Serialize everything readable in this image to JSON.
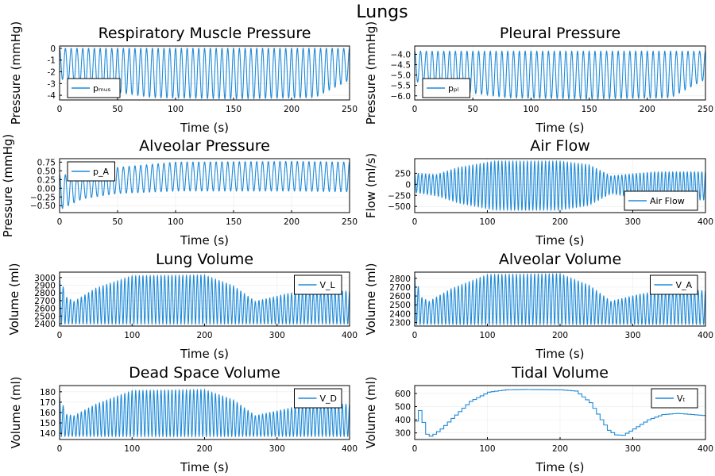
{
  "figure_title": "Lungs",
  "colors": {
    "series": "#1f8ad8",
    "axis": "#000000",
    "legend_bg": "#ffffff"
  },
  "chart_data": [
    {
      "type": "line",
      "title": "Respiratory Muscle Pressure",
      "xlabel": "Time (s)",
      "ylabel": "Pressure (mmHg)",
      "xlim": [
        0,
        250
      ],
      "ylim": [
        -4.4,
        0.2
      ],
      "xticks": [
        0,
        50,
        100,
        150,
        200,
        250
      ],
      "yticks": [
        0,
        -1,
        -2,
        -3,
        -4
      ],
      "legend": {
        "label": "pₘᵤₛ",
        "position": "bottom-left"
      },
      "series": [
        {
          "name": "pₘᵤₛ",
          "waveform": "pulse",
          "period": 5,
          "x_start": 0,
          "x_end": 250,
          "upper_envelope": [
            [
              0,
              0
            ],
            [
              250,
              0
            ]
          ],
          "lower_envelope": [
            [
              0,
              -2.6
            ],
            [
              15,
              -2.9
            ],
            [
              40,
              -3.6
            ],
            [
              80,
              -4.2
            ],
            [
              150,
              -4.3
            ],
            [
              220,
              -4.2
            ],
            [
              250,
              -2.7
            ]
          ]
        }
      ]
    },
    {
      "type": "line",
      "title": "Pleural Pressure",
      "xlabel": "Time (s)",
      "ylabel": "Pressure (mmHg)",
      "xlim": [
        0,
        250
      ],
      "ylim": [
        -6.2,
        -3.6
      ],
      "xticks": [
        0,
        50,
        100,
        150,
        200,
        250
      ],
      "yticks": [
        -4.0,
        -4.5,
        -5.0,
        -5.5,
        -6.0
      ],
      "ytick_labels": [
        "−4.0",
        "−4.5",
        "−5.0",
        "−5.5",
        "−6.0"
      ],
      "legend": {
        "label": "pₚₗ",
        "position": "bottom-left"
      },
      "series": [
        {
          "name": "pₚₗ",
          "waveform": "pulse",
          "period": 5,
          "x_start": 0,
          "x_end": 250,
          "upper_envelope": [
            [
              0,
              -3.85
            ],
            [
              250,
              -3.85
            ]
          ],
          "lower_envelope": [
            [
              0,
              -5.3
            ],
            [
              15,
              -5.5
            ],
            [
              40,
              -5.8
            ],
            [
              80,
              -6.1
            ],
            [
              150,
              -6.15
            ],
            [
              220,
              -6.1
            ],
            [
              250,
              -5.2
            ]
          ]
        }
      ]
    },
    {
      "type": "line",
      "title": "Alveolar Pressure",
      "xlabel": "Time (s)",
      "ylabel": "Pressure (mmHg)",
      "xlim": [
        0,
        250
      ],
      "ylim": [
        -0.7,
        0.85
      ],
      "xticks": [
        0,
        50,
        100,
        150,
        200,
        250
      ],
      "yticks": [
        0.75,
        0.5,
        0.25,
        0,
        -0.25,
        -0.5
      ],
      "ytick_labels": [
        "0.75",
        "0.50",
        "0.25",
        "0.00",
        "−0.25",
        "−0.50"
      ],
      "legend": {
        "label": "p_A",
        "position": "top-left"
      },
      "series": [
        {
          "name": "p_A",
          "waveform": "sine",
          "period": 5,
          "x_start": 0,
          "x_end": 250,
          "upper_envelope": [
            [
              0,
              0.4
            ],
            [
              20,
              0.35
            ],
            [
              50,
              0.6
            ],
            [
              100,
              0.75
            ],
            [
              200,
              0.77
            ],
            [
              250,
              0.75
            ]
          ],
          "lower_envelope": [
            [
              0,
              -0.62
            ],
            [
              20,
              -0.3
            ],
            [
              50,
              -0.15
            ],
            [
              100,
              -0.08
            ],
            [
              200,
              -0.08
            ],
            [
              250,
              -0.1
            ]
          ]
        }
      ]
    },
    {
      "type": "line",
      "title": "Air Flow",
      "xlabel": "Time (s)",
      "ylabel": "Flow (ml/s)",
      "xlim": [
        0,
        400
      ],
      "ylim": [
        -640,
        580
      ],
      "xticks": [
        0,
        100,
        200,
        300,
        400
      ],
      "yticks": [
        250,
        0,
        -250,
        -500
      ],
      "ytick_labels": [
        "250",
        "0",
        "−250",
        "−500"
      ],
      "legend": {
        "label": "Air Flow",
        "position": "bottom-right"
      },
      "series": [
        {
          "name": "Air Flow",
          "waveform": "sine",
          "period": 5,
          "x_start": 0,
          "x_end": 400,
          "upper_envelope": [
            [
              0,
              250
            ],
            [
              30,
              220
            ],
            [
              60,
              380
            ],
            [
              110,
              520
            ],
            [
              200,
              520
            ],
            [
              240,
              440
            ],
            [
              270,
              190
            ],
            [
              330,
              280
            ],
            [
              400,
              280
            ]
          ],
          "lower_envelope": [
            [
              0,
              -180
            ],
            [
              30,
              -260
            ],
            [
              60,
              -420
            ],
            [
              110,
              -580
            ],
            [
              200,
              -580
            ],
            [
              240,
              -470
            ],
            [
              270,
              -210
            ],
            [
              330,
              -370
            ],
            [
              400,
              -350
            ]
          ]
        }
      ]
    },
    {
      "type": "line",
      "title": "Lung Volume",
      "xlabel": "Time (s)",
      "ylabel": "Volume (ml)",
      "xlim": [
        0,
        400
      ],
      "ylim": [
        2370,
        3070
      ],
      "xticks": [
        0,
        100,
        200,
        300,
        400
      ],
      "yticks": [
        3000,
        2900,
        2800,
        2700,
        2600,
        2500,
        2400
      ],
      "legend": {
        "label": "V_L",
        "position": "top-right"
      },
      "series": [
        {
          "name": "V_L",
          "waveform": "pulse",
          "period": 5,
          "x_start": 0,
          "x_end": 400,
          "upper_envelope": [
            [
              0,
              3010
            ],
            [
              10,
              2740
            ],
            [
              20,
              2690
            ],
            [
              50,
              2860
            ],
            [
              100,
              3020
            ],
            [
              200,
              3030
            ],
            [
              240,
              2890
            ],
            [
              270,
              2690
            ],
            [
              310,
              2780
            ],
            [
              340,
              2830
            ],
            [
              400,
              2820
            ]
          ],
          "lower_envelope": [
            [
              0,
              2400
            ],
            [
              400,
              2400
            ]
          ]
        }
      ]
    },
    {
      "type": "line",
      "title": "Alveolar Volume",
      "xlabel": "Time (s)",
      "ylabel": "Volume (ml)",
      "xlim": [
        0,
        400
      ],
      "ylim": [
        2260,
        2870
      ],
      "xticks": [
        0,
        100,
        200,
        300,
        400
      ],
      "yticks": [
        2800,
        2700,
        2600,
        2500,
        2400,
        2300
      ],
      "legend": {
        "label": "V_A",
        "position": "top-right"
      },
      "series": [
        {
          "name": "V_A",
          "waveform": "pulse",
          "period": 5,
          "x_start": 0,
          "x_end": 400,
          "upper_envelope": [
            [
              0,
              2830
            ],
            [
              10,
              2580
            ],
            [
              20,
              2540
            ],
            [
              50,
              2680
            ],
            [
              100,
              2840
            ],
            [
              200,
              2850
            ],
            [
              240,
              2720
            ],
            [
              270,
              2540
            ],
            [
              310,
              2620
            ],
            [
              340,
              2660
            ],
            [
              400,
              2660
            ]
          ],
          "lower_envelope": [
            [
              0,
              2280
            ],
            [
              400,
              2280
            ]
          ]
        }
      ]
    },
    {
      "type": "line",
      "title": "Dead Space Volume",
      "xlabel": "Time (s)",
      "ylabel": "Volume (ml)",
      "xlim": [
        0,
        400
      ],
      "ylim": [
        134,
        186
      ],
      "xticks": [
        0,
        100,
        200,
        300,
        400
      ],
      "yticks": [
        180,
        170,
        160,
        150,
        140
      ],
      "legend": {
        "label": "V_D",
        "position": "top-right"
      },
      "series": [
        {
          "name": "V_D",
          "waveform": "pulse",
          "period": 5,
          "x_start": 0,
          "x_end": 400,
          "upper_envelope": [
            [
              0,
              175
            ],
            [
              10,
              158
            ],
            [
              20,
              157
            ],
            [
              50,
              168
            ],
            [
              100,
              181
            ],
            [
              200,
              182
            ],
            [
              240,
              172
            ],
            [
              270,
              157
            ],
            [
              310,
              163
            ],
            [
              340,
              168
            ],
            [
              400,
              168
            ]
          ],
          "lower_envelope": [
            [
              0,
              137
            ],
            [
              400,
              137
            ]
          ]
        }
      ]
    },
    {
      "type": "line",
      "title": "Tidal Volume",
      "xlabel": "Time (s)",
      "ylabel": "Volume (ml)",
      "xlim": [
        0,
        400
      ],
      "ylim": [
        250,
        660
      ],
      "xticks": [
        0,
        100,
        200,
        300,
        400
      ],
      "yticks": [
        600,
        500,
        400,
        300
      ],
      "legend": {
        "label": "Vₜ",
        "position": "top-right"
      },
      "series": [
        {
          "name": "Vₜ",
          "waveform": "step",
          "period": 5,
          "x_start": 0,
          "x_end": 400,
          "points": [
            [
              0,
              390
            ],
            [
              2,
              540
            ],
            [
              5,
              470
            ],
            [
              8,
              530
            ],
            [
              10,
              380
            ],
            [
              15,
              290
            ],
            [
              20,
              275
            ],
            [
              25,
              290
            ],
            [
              35,
              330
            ],
            [
              50,
              410
            ],
            [
              75,
              540
            ],
            [
              100,
              610
            ],
            [
              125,
              628
            ],
            [
              150,
              630
            ],
            [
              175,
              629
            ],
            [
              200,
              627
            ],
            [
              220,
              618
            ],
            [
              240,
              530
            ],
            [
              255,
              400
            ],
            [
              265,
              320
            ],
            [
              275,
              285
            ],
            [
              285,
              282
            ],
            [
              300,
              330
            ],
            [
              320,
              400
            ],
            [
              340,
              440
            ],
            [
              360,
              448
            ],
            [
              380,
              440
            ],
            [
              400,
              430
            ]
          ]
        }
      ]
    }
  ]
}
